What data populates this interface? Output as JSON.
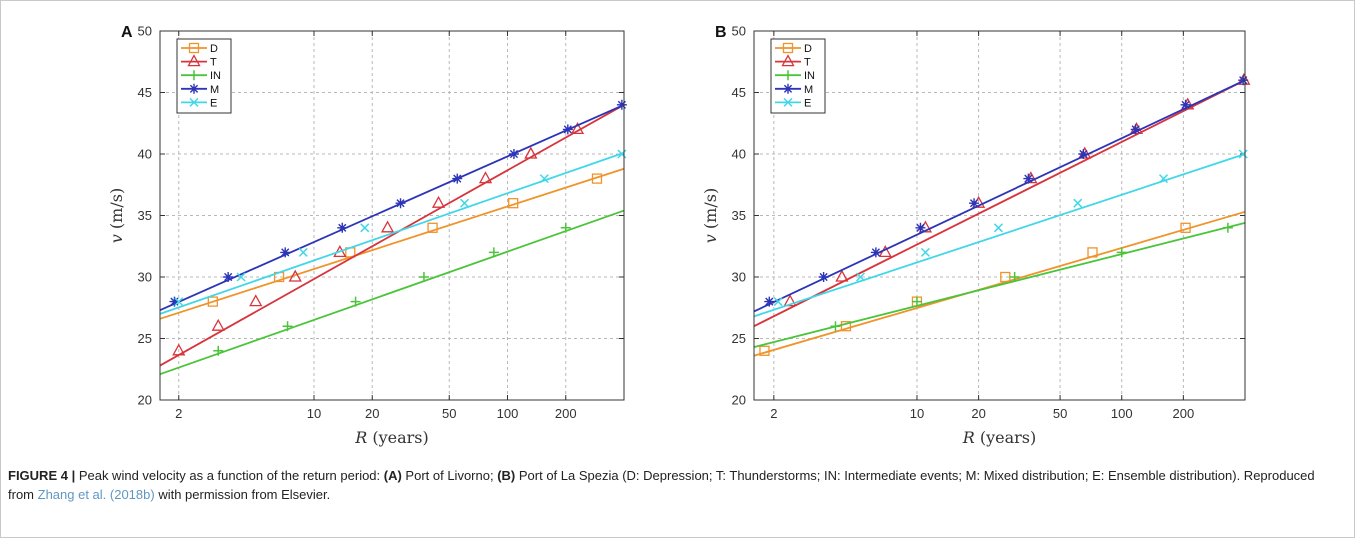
{
  "chart_data": [
    {
      "type": "line",
      "panel": "A",
      "xscale": "log",
      "xlim": [
        1.6,
        400
      ],
      "ylim": [
        20,
        50
      ],
      "xticks": [
        2,
        10,
        20,
        50,
        100,
        200
      ],
      "xtick_labels": [
        "2",
        "10",
        "20",
        "50",
        "100",
        "200"
      ],
      "yticks": [
        20,
        25,
        30,
        35,
        40,
        45,
        50
      ],
      "ytick_labels": [
        "20",
        "25",
        "30",
        "35",
        "40",
        "45",
        "50"
      ],
      "xlabel_symbol": "R",
      "xlabel_unit": "(years)",
      "ylabel_symbol": "v",
      "ylabel_unit": "(m/s)",
      "grid": true,
      "legend_position": "top-left",
      "series": [
        {
          "name": "D",
          "color": "#f0932b",
          "marker": "square",
          "line": [
            [
              1.6,
              26.6
            ],
            [
              400,
              38.8
            ]
          ],
          "markers": [
            [
              3,
              28
            ],
            [
              6.6,
              30
            ],
            [
              15.4,
              32
            ],
            [
              41,
              34
            ],
            [
              107,
              36
            ],
            [
              290,
              38
            ]
          ]
        },
        {
          "name": "T",
          "color": "#d8343b",
          "marker": "triangle",
          "line": [
            [
              1.6,
              22.8
            ],
            [
              400,
              44.0
            ]
          ],
          "markers": [
            [
              2,
              24
            ],
            [
              3.2,
              26
            ],
            [
              5,
              28
            ],
            [
              8,
              30
            ],
            [
              13.6,
              32
            ],
            [
              24,
              34
            ],
            [
              44,
              36
            ],
            [
              77,
              38
            ],
            [
              132,
              40
            ],
            [
              230,
              42
            ]
          ]
        },
        {
          "name": "IN",
          "color": "#4bc43b",
          "marker": "plus",
          "line": [
            [
              1.6,
              22.1
            ],
            [
              400,
              35.4
            ]
          ],
          "markers": [
            [
              3.2,
              24
            ],
            [
              7.3,
              26
            ],
            [
              16.4,
              28
            ],
            [
              37,
              30
            ],
            [
              85,
              32
            ],
            [
              200,
              34
            ]
          ]
        },
        {
          "name": "M",
          "color": "#2c34b8",
          "marker": "asterisk",
          "line": [
            [
              1.6,
              27.3
            ],
            [
              400,
              44.0
            ]
          ],
          "markers": [
            [
              1.9,
              28
            ],
            [
              3.6,
              30
            ],
            [
              7.1,
              32
            ],
            [
              14,
              34
            ],
            [
              28,
              36
            ],
            [
              55,
              38
            ],
            [
              108,
              40
            ],
            [
              205,
              42
            ],
            [
              390,
              44
            ]
          ]
        },
        {
          "name": "E",
          "color": "#42d7e8",
          "marker": "x",
          "line": [
            [
              1.6,
              27.0
            ],
            [
              400,
              40.1
            ]
          ],
          "markers": [
            [
              2,
              28
            ],
            [
              4.2,
              30
            ],
            [
              8.8,
              32
            ],
            [
              18.3,
              34
            ],
            [
              60,
              36
            ],
            [
              155,
              38
            ],
            [
              390,
              40
            ]
          ]
        }
      ]
    },
    {
      "type": "line",
      "panel": "B",
      "xscale": "log",
      "xlim": [
        1.6,
        400
      ],
      "ylim": [
        20,
        50
      ],
      "xticks": [
        2,
        10,
        20,
        50,
        100,
        200
      ],
      "xtick_labels": [
        "2",
        "10",
        "20",
        "50",
        "100",
        "200"
      ],
      "yticks": [
        20,
        25,
        30,
        35,
        40,
        45,
        50
      ],
      "ytick_labels": [
        "20",
        "25",
        "30",
        "35",
        "40",
        "45",
        "50"
      ],
      "xlabel_symbol": "R",
      "xlabel_unit": "(years)",
      "ylabel_symbol": "v",
      "ylabel_unit": "(m/s)",
      "grid": true,
      "legend_position": "top-left",
      "series": [
        {
          "name": "D",
          "color": "#f0932b",
          "marker": "square",
          "line": [
            [
              1.6,
              23.6
            ],
            [
              400,
              35.3
            ]
          ],
          "markers": [
            [
              1.8,
              24
            ],
            [
              4.5,
              26
            ],
            [
              10,
              28
            ],
            [
              27,
              30
            ],
            [
              72,
              32
            ],
            [
              205,
              34
            ]
          ]
        },
        {
          "name": "T",
          "color": "#d8343b",
          "marker": "triangle",
          "line": [
            [
              1.6,
              26.0
            ],
            [
              400,
              46.0
            ]
          ],
          "markers": [
            [
              2.4,
              28
            ],
            [
              4.3,
              30
            ],
            [
              7,
              32
            ],
            [
              11,
              34
            ],
            [
              20,
              36
            ],
            [
              36,
              38
            ],
            [
              66,
              40
            ],
            [
              118,
              42
            ],
            [
              210,
              44
            ],
            [
              395,
              46
            ]
          ]
        },
        {
          "name": "IN",
          "color": "#4bc43b",
          "marker": "plus",
          "line": [
            [
              1.6,
              24.3
            ],
            [
              400,
              34.4
            ]
          ],
          "markers": [
            [
              4,
              26
            ],
            [
              10,
              28
            ],
            [
              30,
              30
            ],
            [
              100,
              32
            ],
            [
              330,
              34
            ]
          ]
        },
        {
          "name": "M",
          "color": "#2c34b8",
          "marker": "asterisk",
          "line": [
            [
              1.6,
              27.2
            ],
            [
              400,
              46.0
            ]
          ],
          "markers": [
            [
              1.9,
              28
            ],
            [
              3.5,
              30
            ],
            [
              6.3,
              32
            ],
            [
              10.4,
              34
            ],
            [
              19,
              36
            ],
            [
              35,
              38
            ],
            [
              65,
              40
            ],
            [
              117,
              42
            ],
            [
              205,
              44
            ],
            [
              392,
              46
            ]
          ]
        },
        {
          "name": "E",
          "color": "#42d7e8",
          "marker": "x",
          "line": [
            [
              1.6,
              26.8
            ],
            [
              400,
              40.0
            ]
          ],
          "markers": [
            [
              2.1,
              28
            ],
            [
              5.3,
              30
            ],
            [
              11,
              32
            ],
            [
              25,
              34
            ],
            [
              61,
              36
            ],
            [
              160,
              38
            ],
            [
              392,
              40
            ]
          ]
        }
      ]
    }
  ],
  "caption": {
    "label": "FIGURE 4 |",
    "text_1": " Peak wind velocity as a function of the return period: ",
    "a_tag": "(A)",
    "text_2": " Port of Livorno; ",
    "b_tag": "(B)",
    "text_3": " Port of La Spezia (D: Depression; T: Thunderstorms; IN: Intermediate events; M: Mixed distribution; E: Ensemble distribution). Reproduced from ",
    "ref": "Zhang et al. (2018b)",
    "text_4": " with permission from Elsevier."
  }
}
